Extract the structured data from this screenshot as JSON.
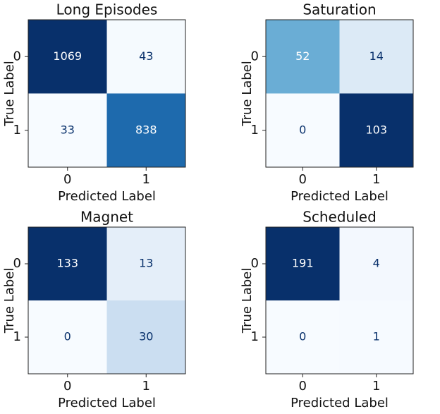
{
  "chart_data": [
    {
      "type": "heatmap",
      "title": "Long Episodes",
      "x_label": "Predicted Label",
      "y_label": "True Label",
      "xticks": [
        0,
        1
      ],
      "yticks": [
        0,
        1
      ],
      "colormap": "Blues",
      "values": [
        [
          1069,
          43
        ],
        [
          33,
          838
        ]
      ]
    },
    {
      "type": "heatmap",
      "title": "Saturation",
      "x_label": "Predicted Label",
      "y_label": "True Label",
      "xticks": [
        0,
        1
      ],
      "yticks": [
        0,
        1
      ],
      "colormap": "Blues",
      "values": [
        [
          52,
          14
        ],
        [
          0,
          103
        ]
      ]
    },
    {
      "type": "heatmap",
      "title": "Magnet",
      "x_label": "Predicted Label",
      "y_label": "True Label",
      "xticks": [
        0,
        1
      ],
      "yticks": [
        0,
        1
      ],
      "colormap": "Blues",
      "values": [
        [
          133,
          13
        ],
        [
          0,
          30
        ]
      ]
    },
    {
      "type": "heatmap",
      "title": "Scheduled",
      "x_label": "Predicted Label",
      "y_label": "True Label",
      "xticks": [
        0,
        1
      ],
      "yticks": [
        0,
        1
      ],
      "colormap": "Blues",
      "values": [
        [
          191,
          4
        ],
        [
          0,
          1
        ]
      ]
    }
  ]
}
